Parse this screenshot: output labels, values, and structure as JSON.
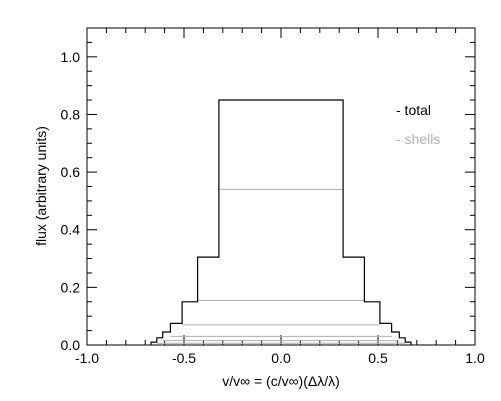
{
  "chart_data": {
    "type": "line",
    "title": "",
    "xlabel": "v/v∞ = (c/v∞)(Δλ/λ)",
    "ylabel": "flux (arbitrary units)",
    "xlim": [
      -1.0,
      1.0
    ],
    "ylim": [
      0.0,
      1.1
    ],
    "x_ticks": [
      -1.0,
      -0.5,
      0.0,
      0.5,
      1.0
    ],
    "x_tick_labels": [
      "-1.0",
      "-0.5",
      "0.0",
      "0.5",
      "1.0"
    ],
    "y_ticks": [
      0.0,
      0.2,
      0.4,
      0.6,
      0.8,
      1.0
    ],
    "y_tick_labels": [
      "0.0",
      "0.2",
      "0.4",
      "0.6",
      "0.8",
      "1.0"
    ],
    "grid": false,
    "legend": {
      "placement": "top-right",
      "entries": [
        {
          "label": "- total",
          "color": "#000000"
        },
        {
          "label": "- shells",
          "color": "#b0b0b0"
        }
      ]
    },
    "series": [
      {
        "name": "total",
        "color": "#000000",
        "x": [
          -0.67,
          -0.67,
          -0.64,
          -0.64,
          -0.61,
          -0.61,
          -0.57,
          -0.57,
          -0.51,
          -0.51,
          -0.43,
          -0.43,
          -0.32,
          -0.32,
          0.32,
          0.32,
          0.43,
          0.43,
          0.51,
          0.51,
          0.57,
          0.57,
          0.61,
          0.61,
          0.64,
          0.64,
          0.67,
          0.67
        ],
        "y": [
          0.0,
          0.01,
          0.01,
          0.025,
          0.025,
          0.045,
          0.045,
          0.075,
          0.075,
          0.15,
          0.15,
          0.305,
          0.305,
          0.85,
          0.85,
          0.305,
          0.305,
          0.15,
          0.15,
          0.075,
          0.075,
          0.045,
          0.045,
          0.025,
          0.025,
          0.01,
          0.01,
          0.0
        ]
      },
      {
        "name": "shells",
        "color": "#b0b0b0",
        "segments": [
          {
            "x": [
              -0.32,
              0.32
            ],
            "y": 0.54
          },
          {
            "x": [
              -0.43,
              0.43
            ],
            "y": 0.155
          },
          {
            "x": [
              -0.51,
              0.51
            ],
            "y": 0.07
          },
          {
            "x": [
              -0.57,
              0.57
            ],
            "y": 0.03
          },
          {
            "x": [
              -0.61,
              0.61
            ],
            "y": 0.015
          },
          {
            "x": [
              -0.64,
              0.64
            ],
            "y": 0.006
          }
        ]
      }
    ]
  }
}
